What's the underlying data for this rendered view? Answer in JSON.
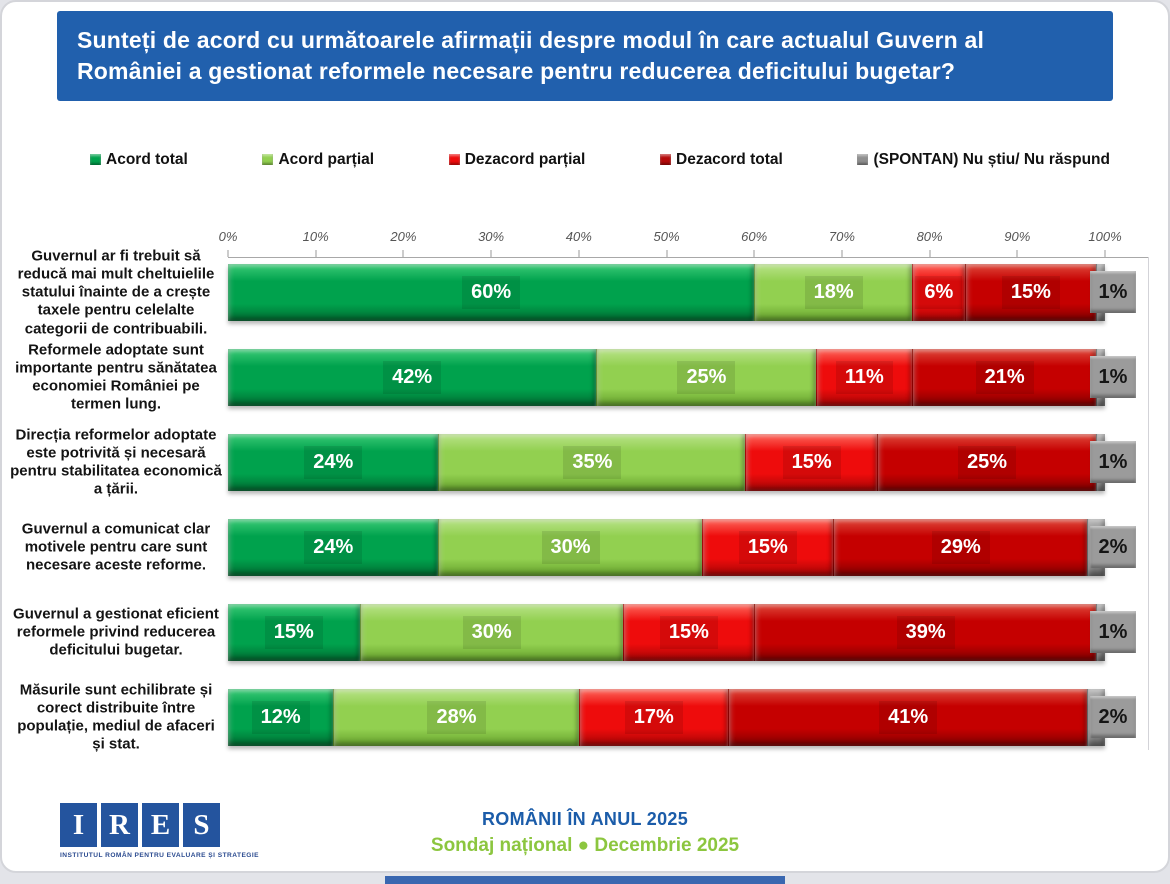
{
  "header": {
    "title": "Sunteți de acord cu următoarele afirmații despre modul în care actualul Guvern al României a gestionat reformele necesare pentru reducerea deficitului bugetar?",
    "bg_color": "#2160AD"
  },
  "legend": {
    "items": [
      {
        "label": "Acord total",
        "color": "#00A24D"
      },
      {
        "label": "Acord parțial",
        "color": "#92D050"
      },
      {
        "label": "Dezacord parțial",
        "color": "#EE0C0C"
      },
      {
        "label": "Dezacord total",
        "color": "#B50A0A"
      },
      {
        "label": "(SPONTAN) Nu știu/ Nu răspund",
        "color": "#8F8F8F"
      }
    ]
  },
  "chart_data": {
    "type": "bar",
    "orientation": "horizontal-stacked",
    "value_suffix": "%",
    "xlim": [
      0,
      100
    ],
    "legend_position": "top",
    "axis_ticks": [
      "0%",
      "10%",
      "20%",
      "30%",
      "40%",
      "50%",
      "60%",
      "70%",
      "80%",
      "90%",
      "100%"
    ],
    "categories": [
      "Guvernul ar fi trebuit să reducă mai mult cheltuielile statului înainte de a crește taxele pentru celelalte categorii de contribuabili.",
      "Reformele adoptate sunt importante pentru sănătatea economiei României pe termen lung.",
      "Direcția reformelor adoptate este potrivită și necesară pentru stabilitatea economică a țării.",
      "Guvernul a comunicat clar motivele pentru care sunt necesare aceste reforme.",
      "Guvernul a gestionat eficient reformele privind reducerea deficitului bugetar.",
      "Măsurile sunt echilibrate și corect distribuite între populație, mediul de afaceri și stat."
    ],
    "series": [
      {
        "name": "Acord total",
        "color": "#00A24D",
        "light": "#3CCB77",
        "dark": "#006B31",
        "values": [
          60,
          42,
          24,
          24,
          15,
          12
        ]
      },
      {
        "name": "Acord parțial",
        "color": "#92D050",
        "light": "#B9E389",
        "dark": "#64A02C",
        "values": [
          18,
          25,
          35,
          30,
          30,
          28
        ]
      },
      {
        "name": "Dezacord parțial",
        "color": "#EE0C0C",
        "light": "#FF6A5E",
        "dark": "#A30505",
        "values": [
          6,
          11,
          15,
          15,
          15,
          17
        ]
      },
      {
        "name": "Dezacord total",
        "color": "#C50000",
        "light": "#E04A3C",
        "dark": "#7E0000",
        "values": [
          15,
          21,
          25,
          29,
          39,
          41
        ]
      },
      {
        "name": "(SPONTAN) Nu știu/ Nu răspund",
        "color": "#909090",
        "light": "#B5B5B5",
        "dark": "#6A6A6A",
        "values": [
          1,
          1,
          1,
          2,
          1,
          2
        ],
        "overhang_label": true
      }
    ]
  },
  "footer": {
    "logo_letters": [
      "I",
      "R",
      "E",
      "S"
    ],
    "logo_subtitle": "INSTITUTUL ROMÂN PENTRU EVALUARE ȘI STRATEGIE",
    "line1": "ROMÂNII ÎN ANUL 2025",
    "line2": "Sondaj național ● Decembrie 2025"
  }
}
